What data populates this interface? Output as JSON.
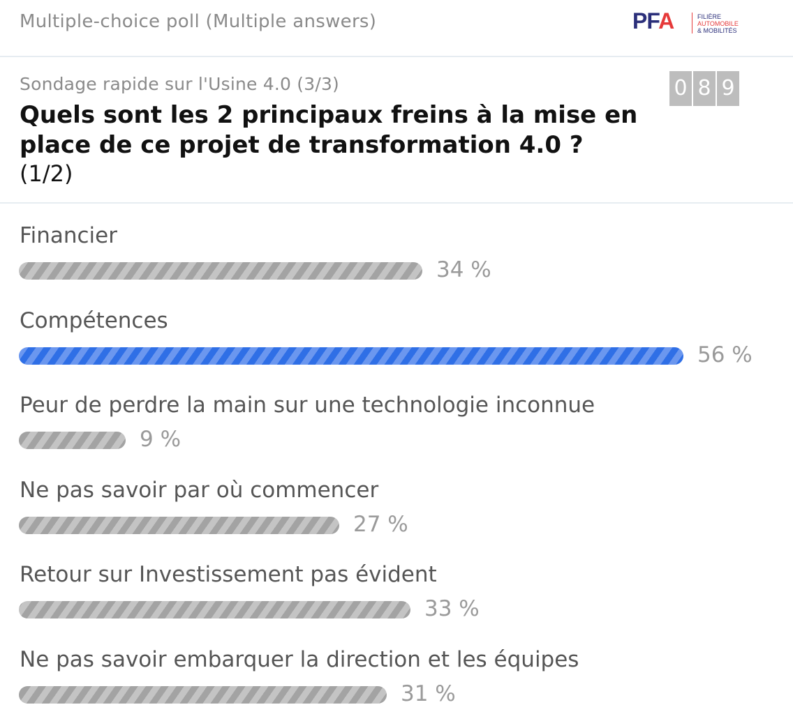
{
  "header": {
    "poll_type": "Multiple-choice poll (Multiple answers)",
    "logo": {
      "mark_pf": "PF",
      "mark_a": "A",
      "line1": "FILIÈRE",
      "line2": "AUTOMOBILE",
      "line3": "& MOBILITÉS"
    }
  },
  "poll": {
    "subtitle": "Sondage rapide sur l'Usine 4.0 (3/3)",
    "question": "Quels sont les 2 principaux freins à la mise en place de ce projet de transformation 4.0 ?",
    "selection_hint": "(1/2)",
    "respondent_count_digits": [
      "0",
      "8",
      "9"
    ]
  },
  "chart_data": {
    "type": "bar",
    "categories": [
      "Financier",
      "Compétences",
      "Peur de perdre la main sur une technologie inconnue",
      "Ne pas savoir par où commencer",
      "Retour sur Investissement pas évident",
      "Ne pas savoir embarquer la direction et les équipes"
    ],
    "values": [
      34,
      56,
      9,
      27,
      33,
      31
    ],
    "value_labels": [
      "34 %",
      "56 %",
      "9 %",
      "27 %",
      "33 %",
      "31 %"
    ],
    "highlighted_index": 1,
    "colors": {
      "default_bar": "#b9b9b9",
      "highlight_bar": "#3d79ea"
    }
  }
}
